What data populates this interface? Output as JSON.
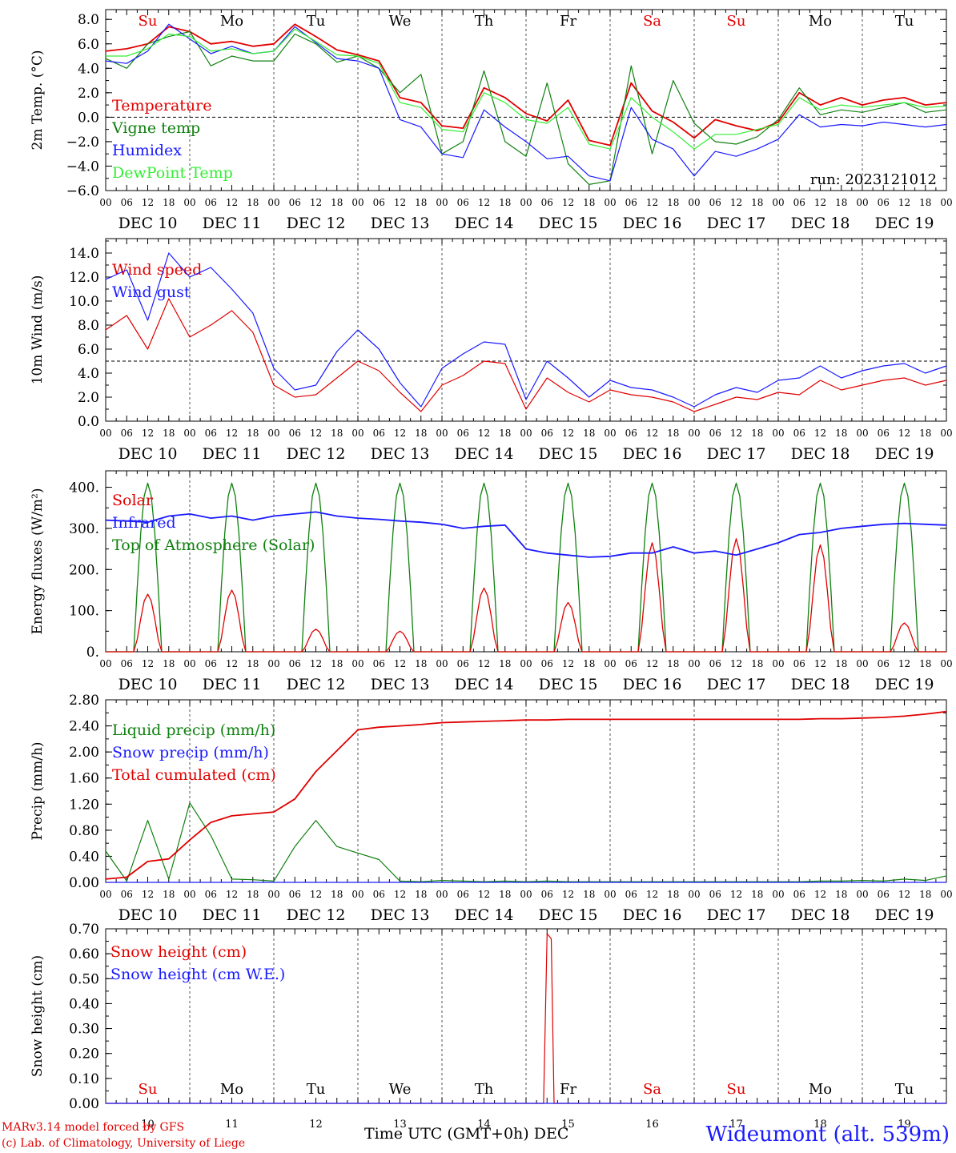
{
  "run_label": "run: 2023121012",
  "x_axis_title": "Time UTC (GMT+0h) DEC",
  "credits": [
    "MARv3.14 model forced by GFS",
    "(c) Lab. of Climatology, University of Liege"
  ],
  "station": "Wideumont (alt. 539m)",
  "hour_ticks": [
    "00",
    "06",
    "12",
    "18"
  ],
  "end_tick": "00",
  "date_labels": [
    "DEC 10",
    "DEC 11",
    "DEC 12",
    "DEC 13",
    "DEC 14",
    "DEC 15",
    "DEC 16",
    "DEC 17",
    "DEC 18",
    "DEC 19"
  ],
  "day_abbrevs": [
    "Su",
    "Mo",
    "Tu",
    "We",
    "Th",
    "Fr",
    "Sa",
    "Su",
    "Mo",
    "Tu"
  ],
  "weekend_color": "#e00000",
  "bottom_day_numbers": [
    "10",
    "11",
    "12",
    "13",
    "14",
    "15",
    "16",
    "17",
    "18",
    "19"
  ],
  "chart_data": [
    {
      "id": "temp",
      "type": "line",
      "ylabel": "2m Temp. (°C)",
      "ylim": [
        -6,
        8.8
      ],
      "yticks": [
        "8.0",
        "6.0",
        "4.0",
        "2.0",
        "0.0",
        "−2.0",
        "−4.0",
        "−6.0"
      ],
      "ytick_values": [
        8,
        6,
        4,
        2,
        0,
        -2,
        -4,
        -6
      ],
      "hline": 0,
      "x": [
        0,
        6,
        12,
        18,
        24,
        30,
        36,
        42,
        48,
        54,
        60,
        66,
        72,
        78,
        84,
        90,
        96,
        102,
        108,
        114,
        120,
        126,
        132,
        138,
        144,
        150,
        156,
        162,
        168,
        174,
        180,
        186,
        192,
        198,
        204,
        210,
        216,
        222,
        228,
        234,
        240
      ],
      "series": [
        {
          "name": "Temperature",
          "color": "#e00000",
          "values": [
            5.4,
            5.6,
            6.0,
            7.4,
            7.0,
            6.0,
            6.2,
            5.8,
            6.0,
            7.6,
            6.6,
            5.5,
            5.1,
            4.6,
            1.6,
            1.2,
            -0.7,
            -0.9,
            2.4,
            1.6,
            0.3,
            -0.3,
            1.4,
            -1.9,
            -2.3,
            2.8,
            0.5,
            -0.4,
            -1.7,
            -0.2,
            -0.7,
            -1.1,
            -0.4,
            2.0,
            1.0,
            1.6,
            1.0,
            1.4,
            1.6,
            1.0,
            1.2
          ]
        },
        {
          "name": "Vigne temp",
          "color": "#108010",
          "values": [
            4.8,
            4.0,
            6.0,
            6.6,
            7.0,
            4.2,
            5.0,
            4.6,
            4.6,
            6.8,
            6.0,
            4.5,
            5.0,
            4.0,
            2.0,
            3.5,
            -3.0,
            -2.0,
            3.8,
            -2.0,
            -3.2,
            2.8,
            -3.8,
            -5.5,
            -5.2,
            4.2,
            -3.0,
            3.0,
            -0.5,
            -2.0,
            -2.2,
            -1.6,
            -0.2,
            2.4,
            0.2,
            0.6,
            0.4,
            0.8,
            1.2,
            0.4,
            0.6
          ]
        },
        {
          "name": "Humidex",
          "color": "#1a1aff",
          "values": [
            4.6,
            4.4,
            5.4,
            7.6,
            6.4,
            5.2,
            5.8,
            5.2,
            5.4,
            7.4,
            6.1,
            4.8,
            4.6,
            4.0,
            -0.2,
            -0.8,
            -3.0,
            -3.3,
            0.6,
            -0.8,
            -2.0,
            -3.4,
            -3.2,
            -4.8,
            -5.2,
            0.8,
            -1.8,
            -2.6,
            -4.8,
            -2.8,
            -3.2,
            -2.6,
            -1.8,
            0.2,
            -0.8,
            -0.6,
            -0.7,
            -0.4,
            -0.6,
            -0.8,
            -0.6
          ]
        },
        {
          "name": "DewPoint Temp",
          "color": "#33ee33",
          "values": [
            5.0,
            5.0,
            5.6,
            6.8,
            6.6,
            5.4,
            5.6,
            5.2,
            5.4,
            7.2,
            6.2,
            5.1,
            5.0,
            4.4,
            1.2,
            0.8,
            -1.0,
            -1.2,
            2.0,
            1.2,
            -0.2,
            -0.5,
            0.8,
            -2.2,
            -2.6,
            1.6,
            0.0,
            -1.2,
            -2.6,
            -1.4,
            -1.4,
            -1.0,
            -0.6,
            1.6,
            0.6,
            1.0,
            0.8,
            1.0,
            1.2,
            0.8,
            0.9
          ]
        }
      ]
    },
    {
      "id": "wind",
      "type": "line",
      "ylabel": "10m Wind (m/s)",
      "ylim": [
        0,
        15.2
      ],
      "yticks": [
        "14.0",
        "12.0",
        "10.0",
        "8.0",
        "6.0",
        "4.0",
        "2.0",
        "0.0"
      ],
      "ytick_values": [
        14,
        12,
        10,
        8,
        6,
        4,
        2,
        0
      ],
      "hline": 5,
      "x": [
        0,
        6,
        12,
        18,
        24,
        30,
        36,
        42,
        48,
        54,
        60,
        66,
        72,
        78,
        84,
        90,
        96,
        102,
        108,
        114,
        120,
        126,
        132,
        138,
        144,
        150,
        156,
        162,
        168,
        174,
        180,
        186,
        192,
        198,
        204,
        210,
        216,
        222,
        228,
        234,
        240
      ],
      "series": [
        {
          "name": "Wind speed",
          "color": "#e00000",
          "values": [
            7.6,
            8.8,
            6.0,
            10.2,
            7.0,
            8.0,
            9.2,
            7.4,
            3.0,
            2.0,
            2.2,
            3.6,
            5.0,
            4.2,
            2.4,
            0.8,
            3.0,
            3.8,
            5.0,
            4.8,
            1.0,
            3.6,
            2.4,
            1.6,
            2.6,
            2.2,
            2.0,
            1.6,
            0.8,
            1.4,
            2.0,
            1.8,
            2.4,
            2.2,
            3.4,
            2.6,
            3.0,
            3.4,
            3.6,
            3.0,
            3.4
          ]
        },
        {
          "name": "Wind gust",
          "color": "#1a1aff",
          "values": [
            11.8,
            12.6,
            8.4,
            14.0,
            12.0,
            12.8,
            11.0,
            9.0,
            4.4,
            2.6,
            3.0,
            5.8,
            7.6,
            6.0,
            3.2,
            1.2,
            4.4,
            5.6,
            6.6,
            6.4,
            1.8,
            5.0,
            3.6,
            2.0,
            3.4,
            2.8,
            2.6,
            2.0,
            1.2,
            2.2,
            2.8,
            2.4,
            3.4,
            3.6,
            4.6,
            3.6,
            4.2,
            4.6,
            4.8,
            4.0,
            4.6
          ]
        }
      ]
    },
    {
      "id": "energy",
      "type": "line",
      "ylabel": "Energy fluxes (W/m²)",
      "ylim": [
        0,
        440
      ],
      "yticks": [
        "400.",
        "300.",
        "200.",
        "100.",
        "0."
      ],
      "ytick_values": [
        400,
        300,
        200,
        100,
        0
      ],
      "solar_peaks": [
        140,
        150,
        55,
        50,
        155,
        120,
        265,
        275,
        260,
        70
      ],
      "toa_peak": 410,
      "infrared": {
        "x": [
          0,
          6,
          12,
          18,
          24,
          30,
          36,
          42,
          48,
          54,
          60,
          66,
          72,
          78,
          84,
          90,
          96,
          102,
          108,
          114,
          120,
          126,
          132,
          138,
          144,
          150,
          156,
          162,
          168,
          174,
          180,
          186,
          192,
          198,
          204,
          210,
          216,
          222,
          228,
          234,
          240
        ],
        "values": [
          320,
          318,
          315,
          330,
          335,
          325,
          330,
          320,
          330,
          335,
          340,
          330,
          325,
          322,
          318,
          315,
          310,
          300,
          305,
          308,
          250,
          240,
          235,
          230,
          232,
          240,
          240,
          255,
          240,
          245,
          235,
          250,
          265,
          285,
          290,
          300,
          305,
          310,
          312,
          310,
          308
        ]
      },
      "series": [
        {
          "name": "Solar",
          "color": "#e00000"
        },
        {
          "name": "Infrared",
          "color": "#1a1aff"
        },
        {
          "name": "Top of Atmosphere (Solar)",
          "color": "#108010"
        }
      ]
    },
    {
      "id": "precip",
      "type": "line",
      "ylabel": "Precip (mm/h)",
      "ylim": [
        0,
        2.8
      ],
      "yticks": [
        "2.80",
        "2.40",
        "2.00",
        "1.60",
        "1.20",
        "0.80",
        "0.40",
        "0.00"
      ],
      "ytick_values": [
        2.8,
        2.4,
        2.0,
        1.6,
        1.2,
        0.8,
        0.4,
        0
      ],
      "x": [
        0,
        6,
        12,
        18,
        24,
        30,
        36,
        42,
        48,
        54,
        60,
        66,
        72,
        78,
        84,
        90,
        96,
        102,
        108,
        114,
        120,
        126,
        132,
        138,
        144,
        150,
        156,
        162,
        168,
        174,
        180,
        186,
        192,
        198,
        204,
        210,
        216,
        222,
        228,
        234,
        240
      ],
      "series": [
        {
          "name": "Liquid precip (mm/h)",
          "color": "#108010",
          "values": [
            0.48,
            0.02,
            0.95,
            0.05,
            1.22,
            0.72,
            0.05,
            0.04,
            0.02,
            0.55,
            0.95,
            0.55,
            0.45,
            0.35,
            0.02,
            0.01,
            0.03,
            0.02,
            0.01,
            0.02,
            0.01,
            0.02,
            0.01,
            0.01,
            0.01,
            0.01,
            0.01,
            0.01,
            0.01,
            0.01,
            0.01,
            0.01,
            0.01,
            0.01,
            0.02,
            0.02,
            0.03,
            0.02,
            0.05,
            0.03,
            0.1
          ]
        },
        {
          "name": "Snow precip (mm/h)",
          "color": "#1a1aff",
          "values": [
            0,
            0,
            0,
            0,
            0,
            0,
            0,
            0,
            0,
            0,
            0,
            0,
            0,
            0,
            0,
            0,
            0,
            0,
            0,
            0,
            0,
            0,
            0,
            0,
            0,
            0,
            0,
            0,
            0,
            0,
            0,
            0,
            0,
            0,
            0,
            0,
            0,
            0,
            0,
            0,
            0
          ]
        },
        {
          "name": "Total cumulated (cm)",
          "color": "#e00000",
          "values": [
            0.05,
            0.08,
            0.32,
            0.36,
            0.65,
            0.92,
            1.02,
            1.05,
            1.08,
            1.28,
            1.7,
            2.02,
            2.34,
            2.38,
            2.4,
            2.42,
            2.45,
            2.46,
            2.47,
            2.48,
            2.49,
            2.49,
            2.5,
            2.5,
            2.5,
            2.5,
            2.5,
            2.5,
            2.5,
            2.5,
            2.5,
            2.5,
            2.5,
            2.5,
            2.51,
            2.51,
            2.52,
            2.53,
            2.55,
            2.58,
            2.62
          ]
        }
      ]
    },
    {
      "id": "snow",
      "type": "line",
      "ylabel": "Snow height (cm)",
      "ylim": [
        0,
        0.7
      ],
      "yticks": [
        "0.70",
        "0.60",
        "0.50",
        "0.40",
        "0.30",
        "0.20",
        "0.10",
        "0.00"
      ],
      "ytick_values": [
        0.7,
        0.6,
        0.5,
        0.4,
        0.3,
        0.2,
        0.1,
        0
      ],
      "x": [
        0,
        125,
        126,
        126.6,
        127.2,
        128,
        240
      ],
      "series": [
        {
          "name": "Snow height (cm)",
          "color": "#e00000",
          "values": [
            0,
            0,
            0.68,
            0.67,
            0.66,
            0,
            0
          ]
        },
        {
          "name": "Snow height (cm W.E.)",
          "color": "#1a1aff",
          "values": [
            0,
            0,
            0,
            0,
            0,
            0,
            0
          ]
        }
      ]
    }
  ]
}
